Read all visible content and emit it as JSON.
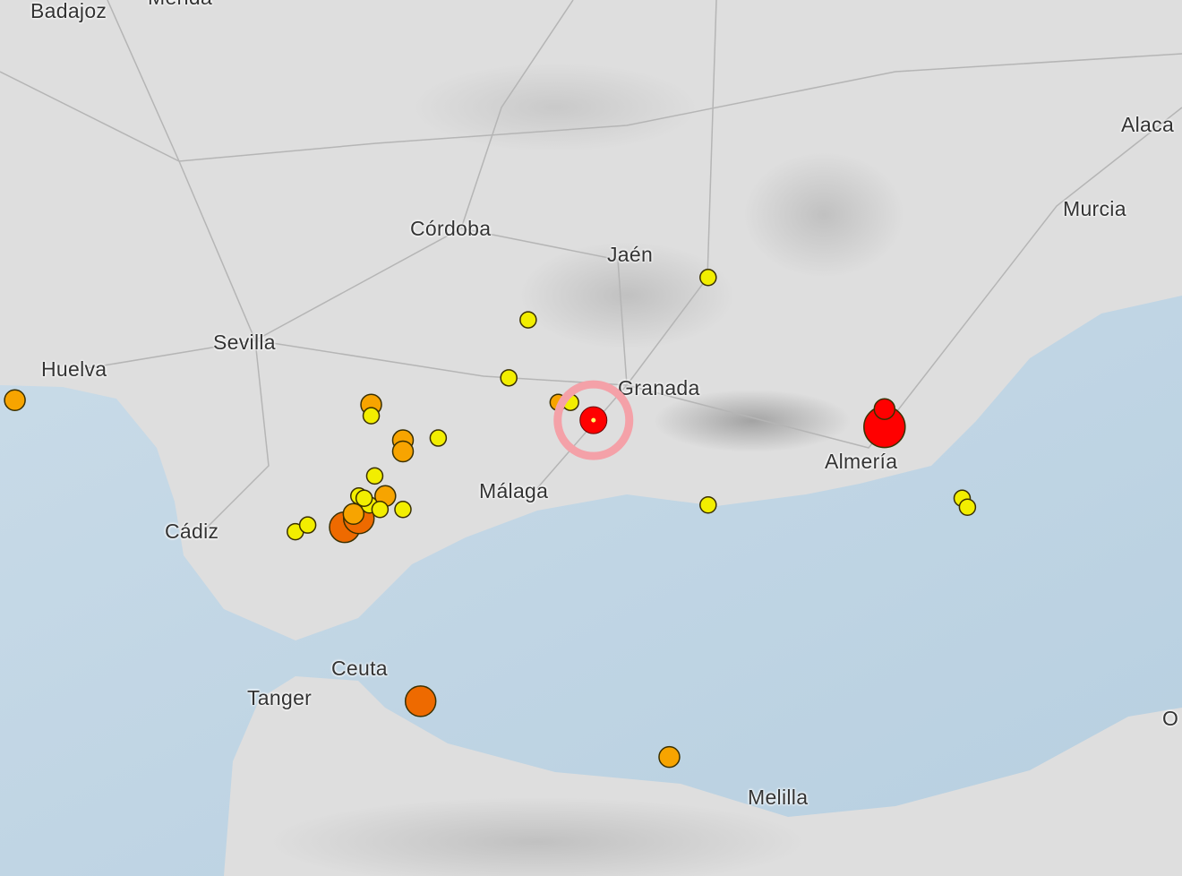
{
  "map": {
    "colors": {
      "land": "#dedede",
      "sea": "#c9dbe8",
      "sea_deep": "#b7cfe0",
      "roads": "#b5b5b5",
      "highlight_ring": "#f4a1a8"
    },
    "cities": [
      {
        "name": "Badajoz"
      },
      {
        "name": "Mérida"
      },
      {
        "name": "Alaca"
      },
      {
        "name": "Córdoba"
      },
      {
        "name": "Jaén"
      },
      {
        "name": "Murcia"
      },
      {
        "name": "Sevilla"
      },
      {
        "name": "Huelva"
      },
      {
        "name": "Granada"
      },
      {
        "name": "Almería"
      },
      {
        "name": "Málaga"
      },
      {
        "name": "Cádiz"
      },
      {
        "name": "Ceuta"
      },
      {
        "name": "Tanger"
      },
      {
        "name": "Melilla"
      },
      {
        "name": "O"
      }
    ],
    "marker_colors": {
      "yellow": "#f2ee00",
      "orange": "#f7a400",
      "dark-orange": "#ee6a00",
      "red": "#ff0000"
    },
    "earthquakes": [
      {
        "lat": 37.11,
        "lon": -7.31,
        "color": "orange",
        "size": 2
      },
      {
        "lat": 37.09,
        "lon": -5.29,
        "color": "orange",
        "size": 2
      },
      {
        "lat": 37.04,
        "lon": -5.29,
        "color": "yellow",
        "size": 1
      },
      {
        "lat": 36.93,
        "lon": -5.11,
        "color": "orange",
        "size": 2
      },
      {
        "lat": 36.88,
        "lon": -5.11,
        "color": "orange",
        "size": 2
      },
      {
        "lat": 36.94,
        "lon": -4.91,
        "color": "yellow",
        "size": 1
      },
      {
        "lat": 37.21,
        "lon": -4.51,
        "color": "yellow",
        "size": 1
      },
      {
        "lat": 37.47,
        "lon": -4.4,
        "color": "yellow",
        "size": 1
      },
      {
        "lat": 37.66,
        "lon": -3.38,
        "color": "yellow",
        "size": 1
      },
      {
        "lat": 37.1,
        "lon": -4.23,
        "color": "orange",
        "size": 1
      },
      {
        "lat": 37.1,
        "lon": -4.16,
        "color": "yellow",
        "size": 1
      },
      {
        "lat": 37.07,
        "lon": -2.38,
        "color": "red",
        "size": 2
      },
      {
        "lat": 36.99,
        "lon": -2.38,
        "color": "red",
        "size": 4
      },
      {
        "lat": 36.64,
        "lon": -3.38,
        "color": "yellow",
        "size": 1
      },
      {
        "lat": 36.67,
        "lon": -1.94,
        "color": "yellow",
        "size": 1
      },
      {
        "lat": 36.63,
        "lon": -1.91,
        "color": "yellow",
        "size": 1
      },
      {
        "lat": 35.76,
        "lon": -5.01,
        "color": "dark-orange",
        "size": 3
      },
      {
        "lat": 35.51,
        "lon": -3.6,
        "color": "orange",
        "size": 2
      },
      {
        "lat": 36.68,
        "lon": -5.21,
        "color": "orange",
        "size": 2
      },
      {
        "lat": 36.6,
        "lon": -5.39,
        "color": "orange",
        "size": 2
      },
      {
        "lat": 36.54,
        "lon": -5.44,
        "color": "dark-orange",
        "size": 3
      },
      {
        "lat": 36.58,
        "lon": -5.36,
        "color": "dark-orange",
        "size": 3
      },
      {
        "lat": 36.77,
        "lon": -5.27,
        "color": "yellow",
        "size": 1
      },
      {
        "lat": 36.68,
        "lon": -5.36,
        "color": "yellow",
        "size": 1
      },
      {
        "lat": 36.64,
        "lon": -5.3,
        "color": "yellow",
        "size": 1
      },
      {
        "lat": 36.62,
        "lon": -5.24,
        "color": "yellow",
        "size": 1
      },
      {
        "lat": 36.62,
        "lon": -5.11,
        "color": "yellow",
        "size": 1
      },
      {
        "lat": 36.67,
        "lon": -5.33,
        "color": "yellow",
        "size": 1
      },
      {
        "lat": 36.52,
        "lon": -5.72,
        "color": "yellow",
        "size": 1
      },
      {
        "lat": 36.55,
        "lon": -5.65,
        "color": "yellow",
        "size": 1
      }
    ],
    "selected_earthquake": {
      "lat": 37.02,
      "lon": -4.03,
      "color": "red"
    }
  }
}
